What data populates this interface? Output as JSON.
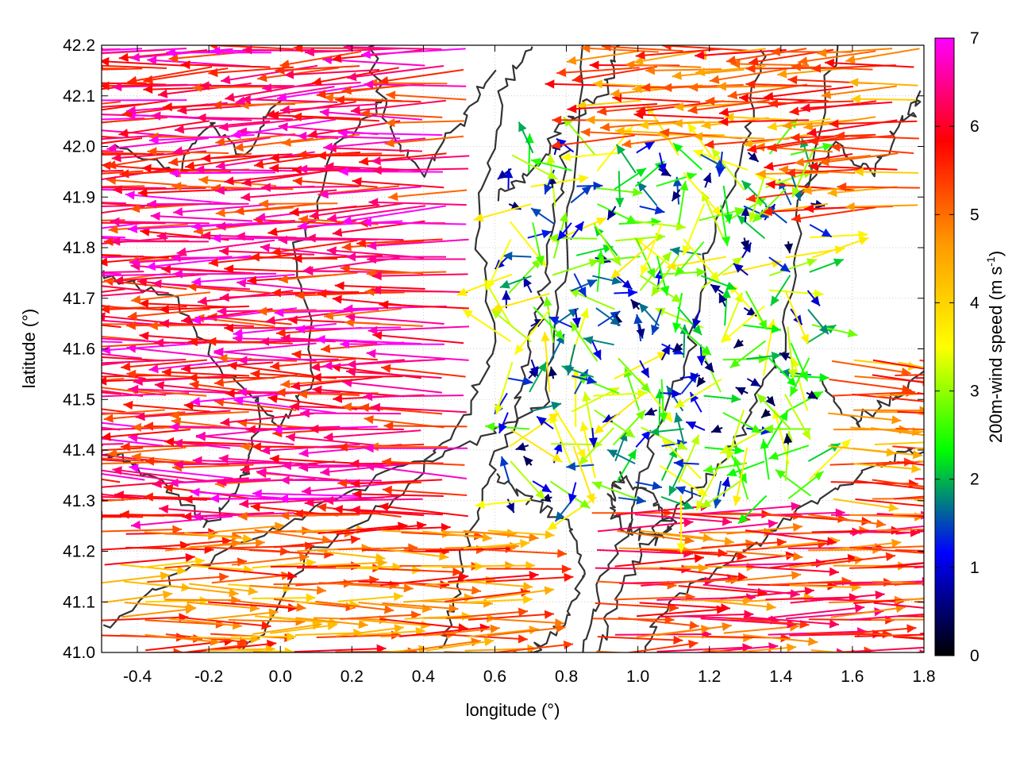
{
  "chart_data": {
    "type": "vector-field",
    "xlabel": "longitude (°)",
    "ylabel": "latitude (°)",
    "xlim": [
      -0.5,
      1.8
    ],
    "ylim": [
      41.0,
      42.2
    ],
    "x_ticks": [
      "-0.4",
      "-0.2",
      "0.0",
      "0.2",
      "0.4",
      "0.6",
      "0.8",
      "1.0",
      "1.2",
      "1.4",
      "1.6",
      "1.8"
    ],
    "x_tick_values": [
      -0.4,
      -0.2,
      0.0,
      0.2,
      0.4,
      0.6,
      0.8,
      1.0,
      1.2,
      1.4,
      1.6,
      1.8
    ],
    "y_ticks": [
      "41.0",
      "41.1",
      "41.2",
      "41.3",
      "41.4",
      "41.5",
      "41.6",
      "41.7",
      "41.8",
      "41.9",
      "42.0",
      "42.1",
      "42.2"
    ],
    "y_tick_values": [
      41.0,
      41.1,
      41.2,
      41.3,
      41.4,
      41.5,
      41.6,
      41.7,
      41.8,
      41.9,
      42.0,
      42.1,
      42.2
    ],
    "grid": true,
    "colorbar": {
      "label_main": "200m-wind speed (m s",
      "label_sup": "-1",
      "label_end": ")",
      "range": [
        0,
        7
      ],
      "ticks": [
        "0",
        "1",
        "2",
        "3",
        "4",
        "5",
        "6",
        "7"
      ],
      "tick_values": [
        0,
        1,
        2,
        3,
        4,
        5,
        6,
        7
      ],
      "palette": [
        "#000000",
        "#0000ff",
        "#00ff00",
        "#ffff00",
        "#ff9900",
        "#ff0000",
        "#ff00ff"
      ]
    },
    "contour_color": "#333333",
    "wind_regions": [
      {
        "region": "west",
        "lon": [
          -0.5,
          0.55
        ],
        "lat": [
          41.25,
          42.2
        ],
        "direction": "westward",
        "speed": 7
      },
      {
        "region": "southwest",
        "lon": [
          -0.5,
          0.6
        ],
        "lat": [
          41.0,
          41.25
        ],
        "direction": "eastward",
        "speed": 6
      },
      {
        "region": "center",
        "lon": [
          0.6,
          1.5
        ],
        "lat": [
          41.3,
          42.0
        ],
        "direction": "variable",
        "speed": 1.5
      },
      {
        "region": "east",
        "lon": [
          1.5,
          1.8
        ],
        "lat": [
          41.3,
          41.6
        ],
        "direction": "eastward",
        "speed": 6
      },
      {
        "region": "southeast",
        "lon": [
          0.85,
          1.8
        ],
        "lat": [
          41.0,
          41.3
        ],
        "direction": "eastward",
        "speed": 6.5
      },
      {
        "region": "northeast",
        "lon": [
          1.0,
          1.8
        ],
        "lat": [
          41.85,
          42.2
        ],
        "direction": "westward",
        "speed": 6
      }
    ]
  }
}
